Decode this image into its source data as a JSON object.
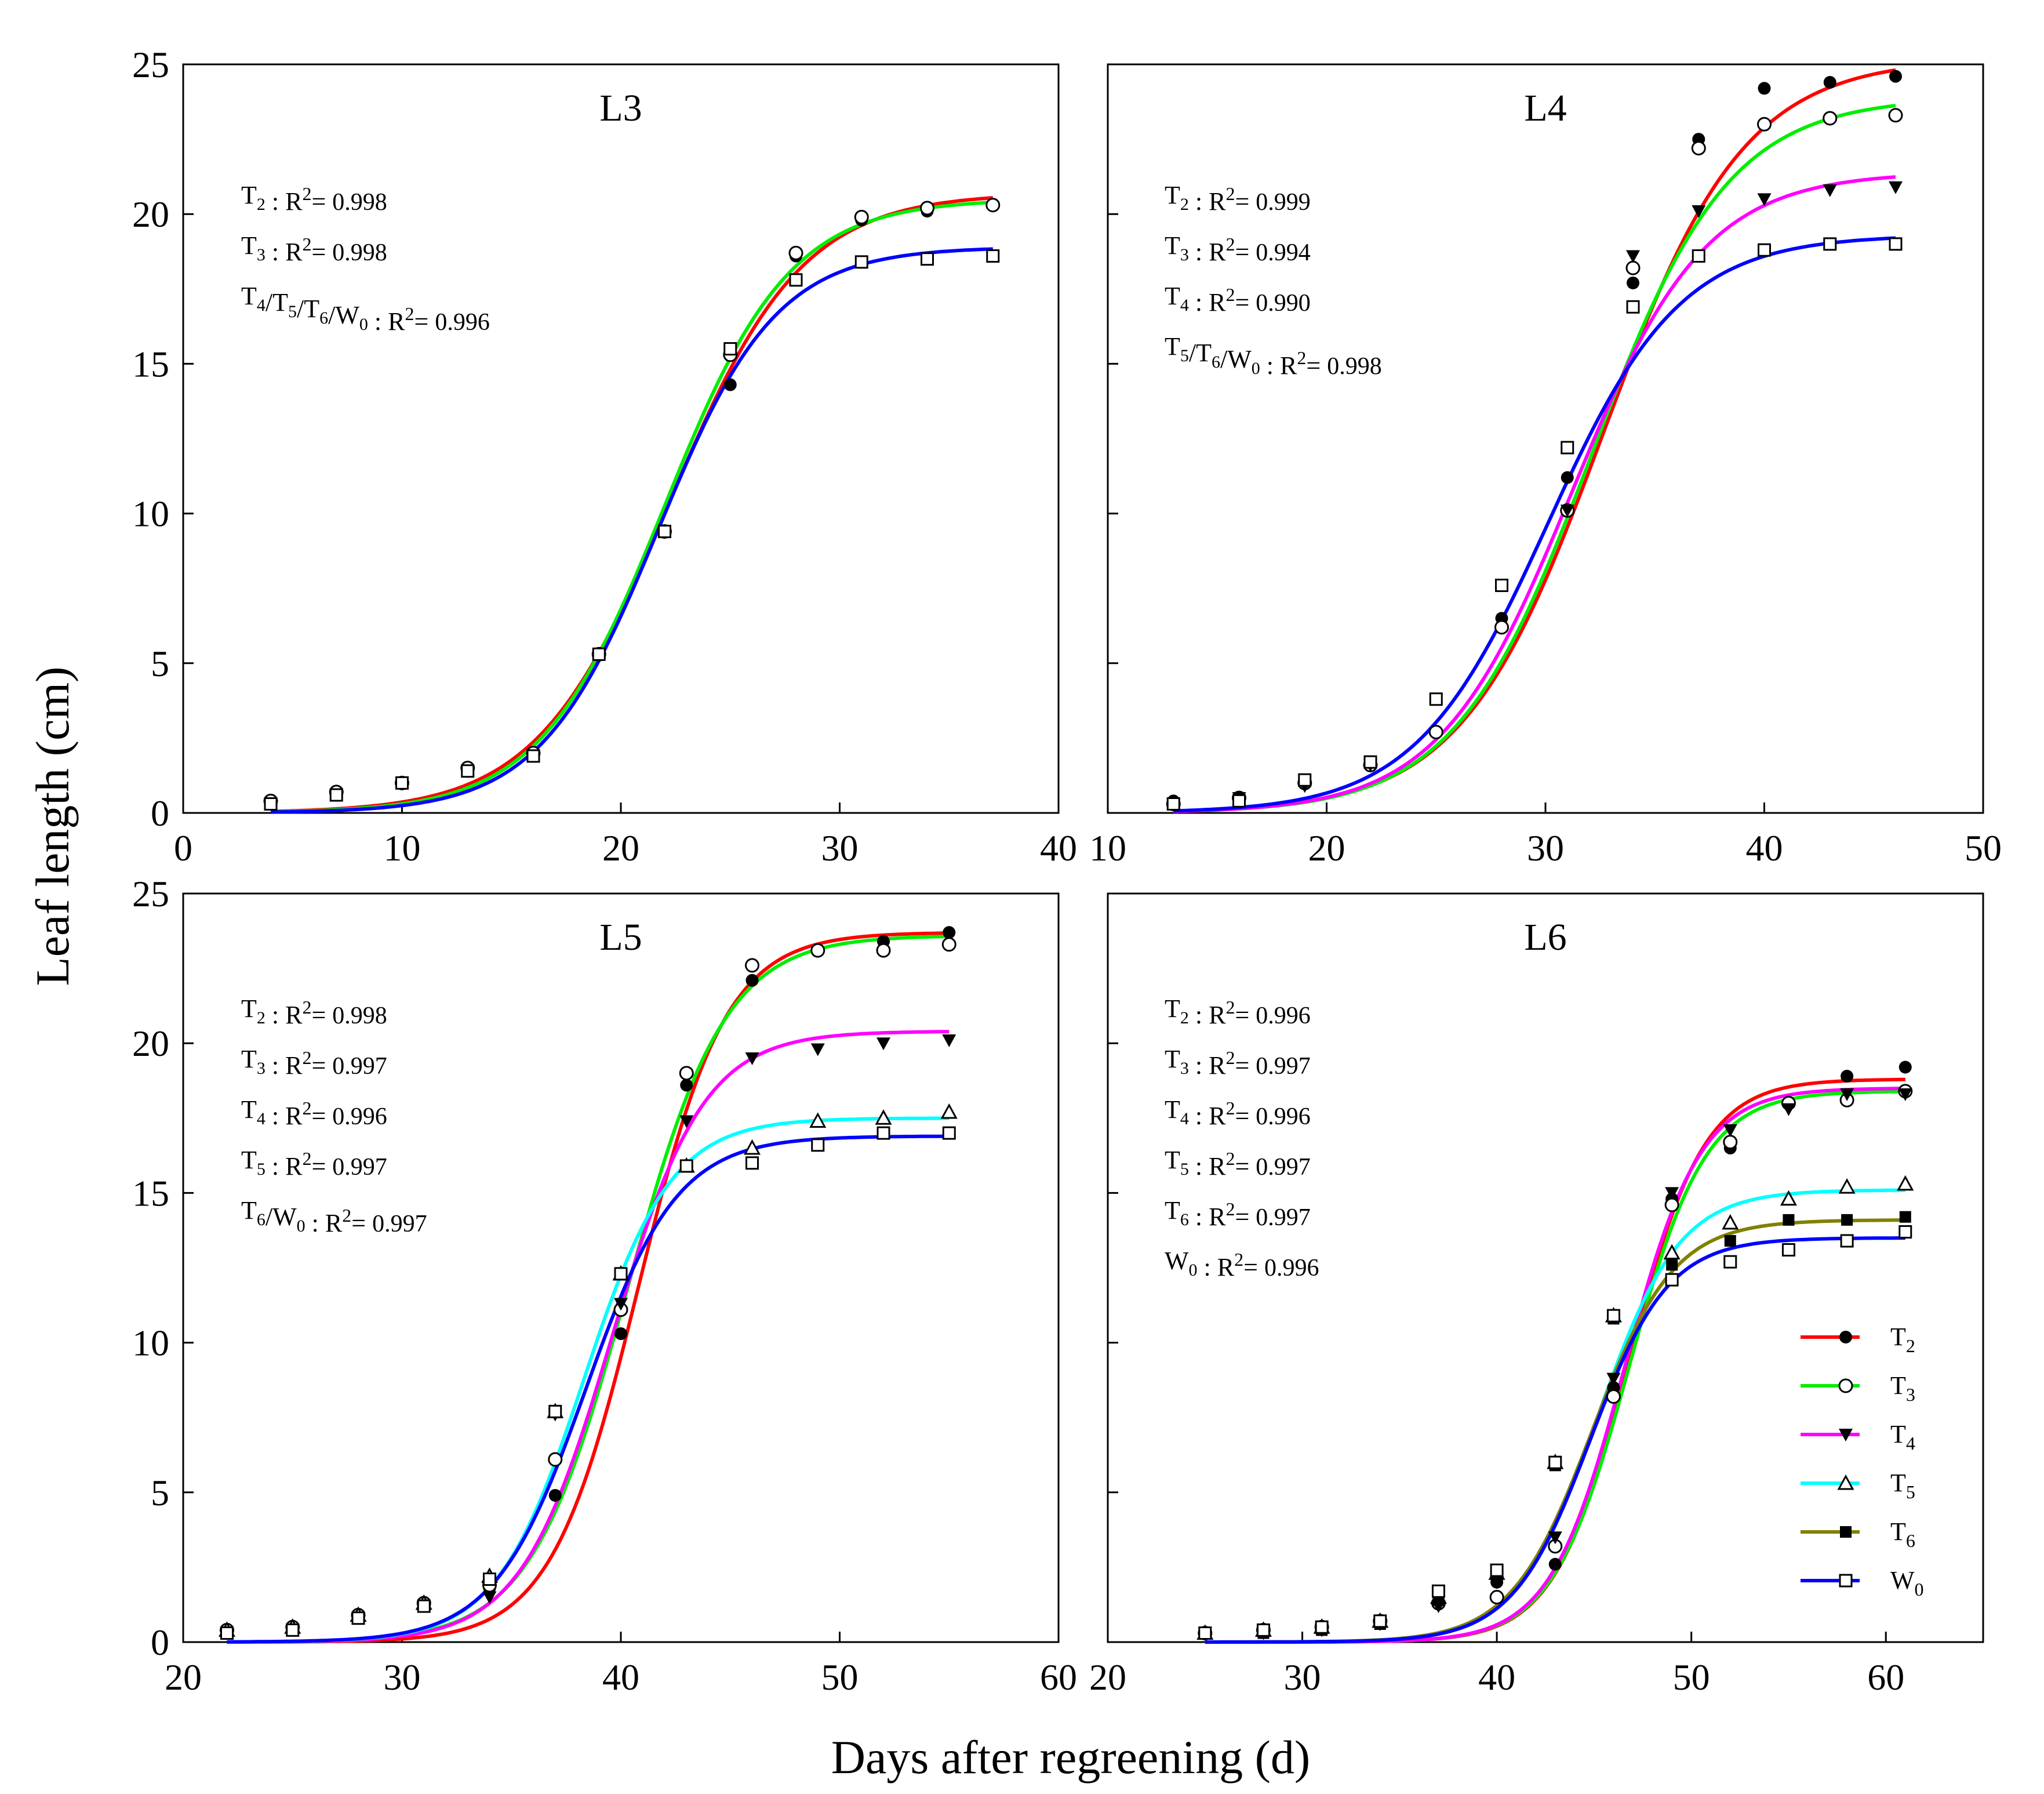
{
  "figure": {
    "ylabel": "Leaf length (cm)",
    "xlabel": "Days after regreening (d)",
    "colors": {
      "T2": "#ff0000",
      "T3": "#00ee00",
      "T4": "#ff00ff",
      "T5": "#00ffff",
      "T6": "#808000",
      "W0": "#0000ff"
    },
    "markers": {
      "T2": "filled-circle",
      "T3": "open-circle",
      "T4": "filled-triangle-down",
      "T5": "open-triangle-up",
      "T6": "filled-square",
      "W0": "open-square"
    },
    "legend": {
      "placement": "L6 panel, lower-right",
      "entries": [
        {
          "key": "T2",
          "main": "T",
          "sub": "2"
        },
        {
          "key": "T3",
          "main": "T",
          "sub": "3"
        },
        {
          "key": "T4",
          "main": "T",
          "sub": "4"
        },
        {
          "key": "T5",
          "main": "T",
          "sub": "5"
        },
        {
          "key": "T6",
          "main": "T",
          "sub": "6"
        },
        {
          "key": "W0",
          "main": "W",
          "sub": "0"
        }
      ]
    }
  },
  "chart_data": [
    {
      "type": "scatter",
      "title": "L3",
      "xlim": [
        0,
        40
      ],
      "ylim": [
        0,
        25
      ],
      "xticks": [
        0,
        10,
        20,
        30,
        40
      ],
      "xtick_labels": [
        "0",
        "10",
        "20",
        "30",
        "40"
      ],
      "yticks": [
        0,
        5,
        10,
        15,
        20,
        25
      ],
      "ytick_labels": [
        "0",
        "5",
        "10",
        "15",
        "20",
        "25"
      ],
      "show_ytick_labels": true,
      "annotations": [
        {
          "parts": [
            [
              "T",
              "2"
            ]
          ],
          "r2": "0.998"
        },
        {
          "parts": [
            [
              "T",
              "3"
            ]
          ],
          "r2": "0.998"
        },
        {
          "parts": [
            [
              "T",
              "4"
            ],
            [
              "T",
              "5"
            ],
            [
              "T",
              "6"
            ],
            [
              "W",
              "0"
            ]
          ],
          "r2": "0.996"
        }
      ],
      "curves": [
        {
          "name": "T2",
          "A": 20.7,
          "k": 0.33,
          "x0": 22.2
        },
        {
          "name": "T3",
          "A": 20.5,
          "k": 0.35,
          "x0": 22.0
        },
        {
          "name": "W0",
          "A": 18.9,
          "k": 0.37,
          "x0": 21.7
        }
      ],
      "curve_x_range": [
        4,
        37
      ],
      "series": [
        {
          "name": "T2",
          "x": [
            4,
            7,
            10,
            13,
            16,
            19,
            22,
            25,
            28,
            31,
            34,
            37
          ],
          "y": [
            0.4,
            0.7,
            1.0,
            1.5,
            2.0,
            5.3,
            9.4,
            14.3,
            18.6,
            19.8,
            20.1,
            20.3
          ]
        },
        {
          "name": "T3",
          "x": [
            4,
            7,
            10,
            13,
            16,
            19,
            22,
            25,
            28,
            31,
            34,
            37
          ],
          "y": [
            0.4,
            0.7,
            1.0,
            1.5,
            2.0,
            5.3,
            9.4,
            15.3,
            18.7,
            19.9,
            20.2,
            20.3
          ]
        },
        {
          "name": "W0",
          "x": [
            4,
            7,
            10,
            13,
            16,
            19,
            22,
            25,
            28,
            31,
            34,
            37
          ],
          "y": [
            0.3,
            0.6,
            1.0,
            1.4,
            1.9,
            5.3,
            9.4,
            15.5,
            17.8,
            18.4,
            18.5,
            18.6
          ]
        }
      ]
    },
    {
      "type": "scatter",
      "title": "L4",
      "xlim": [
        10,
        50
      ],
      "ylim": [
        0,
        25
      ],
      "xticks": [
        10,
        20,
        30,
        40,
        50
      ],
      "xtick_labels": [
        "10",
        "20",
        "30",
        "40",
        "50"
      ],
      "yticks": [
        0,
        5,
        10,
        15,
        20,
        25
      ],
      "ytick_labels": [
        "0",
        "5",
        "10",
        "15",
        "20",
        "25"
      ],
      "show_ytick_labels": false,
      "annotations": [
        {
          "parts": [
            [
              "T",
              "2"
            ]
          ],
          "r2": "0.999"
        },
        {
          "parts": [
            [
              "T",
              "3"
            ]
          ],
          "r2": "0.994"
        },
        {
          "parts": [
            [
              "T",
              "4"
            ]
          ],
          "r2": "0.990"
        },
        {
          "parts": [
            [
              "T",
              "5"
            ],
            [
              "T",
              "6"
            ],
            [
              "W",
              "0"
            ]
          ],
          "r2": "0.998"
        }
      ],
      "curves": [
        {
          "name": "T2",
          "A": 25.2,
          "k": 0.31,
          "x0": 32.6
        },
        {
          "name": "T3",
          "A": 23.9,
          "k": 0.32,
          "x0": 32.1
        },
        {
          "name": "T4",
          "A": 21.4,
          "k": 0.33,
          "x0": 31.2
        },
        {
          "name": "W0",
          "A": 19.3,
          "k": 0.33,
          "x0": 30.1
        }
      ],
      "curve_x_range": [
        13,
        46
      ],
      "series": [
        {
          "name": "T2",
          "x": [
            13,
            16,
            19,
            22,
            25,
            28,
            31,
            34,
            37,
            40,
            43,
            46
          ],
          "y": [
            0.4,
            0.5,
            1.0,
            1.6,
            2.7,
            6.5,
            11.2,
            17.7,
            22.5,
            24.2,
            24.4,
            24.6
          ]
        },
        {
          "name": "T3",
          "x": [
            13,
            16,
            19,
            22,
            25,
            28,
            31,
            34,
            37,
            40,
            43,
            46
          ],
          "y": [
            0.3,
            0.5,
            1.0,
            1.6,
            2.7,
            6.2,
            10.1,
            18.2,
            22.2,
            23.0,
            23.2,
            23.3
          ]
        },
        {
          "name": "T4",
          "x": [
            13,
            16,
            19,
            22,
            25,
            28,
            31,
            34,
            37,
            40,
            43,
            46
          ],
          "y": [
            0.3,
            0.5,
            0.9,
            1.6,
            3.8,
            7.6,
            10.1,
            18.6,
            20.1,
            20.5,
            20.8,
            20.9
          ]
        },
        {
          "name": "W0",
          "x": [
            13,
            16,
            19,
            22,
            25,
            28,
            31,
            34,
            37,
            40,
            43,
            46
          ],
          "y": [
            0.3,
            0.4,
            1.1,
            1.7,
            3.8,
            7.6,
            12.2,
            16.9,
            18.6,
            18.8,
            19.0,
            19.0
          ]
        }
      ]
    },
    {
      "type": "scatter",
      "title": "L5",
      "xlim": [
        20,
        60
      ],
      "ylim": [
        0,
        25
      ],
      "xticks": [
        20,
        30,
        40,
        50,
        60
      ],
      "xtick_labels": [
        "20",
        "30",
        "40",
        "50",
        "60"
      ],
      "yticks": [
        0,
        5,
        10,
        15,
        20,
        25
      ],
      "ytick_labels": [
        "0",
        "5",
        "10",
        "15",
        "20",
        "25"
      ],
      "show_ytick_labels": true,
      "annotations": [
        {
          "parts": [
            [
              "T",
              "2"
            ]
          ],
          "r2": "0.998"
        },
        {
          "parts": [
            [
              "T",
              "3"
            ]
          ],
          "r2": "0.997"
        },
        {
          "parts": [
            [
              "T",
              "4"
            ]
          ],
          "r2": "0.996"
        },
        {
          "parts": [
            [
              "T",
              "5"
            ]
          ],
          "r2": "0.997"
        },
        {
          "parts": [
            [
              "T",
              "6"
            ],
            [
              "W",
              "0"
            ]
          ],
          "r2": "0.997"
        }
      ],
      "curves": [
        {
          "name": "T2",
          "A": 23.7,
          "k": 0.5,
          "x0": 40.8
        },
        {
          "name": "T3",
          "A": 23.6,
          "k": 0.45,
          "x0": 40.3
        },
        {
          "name": "T4",
          "A": 20.4,
          "k": 0.48,
          "x0": 39.6
        },
        {
          "name": "T5",
          "A": 17.5,
          "k": 0.5,
          "x0": 38.3
        },
        {
          "name": "W0",
          "A": 16.9,
          "k": 0.48,
          "x0": 38.4
        }
      ],
      "curve_x_range": [
        22,
        55
      ],
      "series": [
        {
          "name": "T2",
          "x": [
            22,
            25,
            28,
            31,
            34,
            37,
            40,
            43,
            46,
            49,
            52,
            55
          ],
          "y": [
            0.4,
            0.5,
            0.8,
            1.2,
            1.8,
            4.9,
            10.3,
            18.6,
            22.1,
            23.1,
            23.4,
            23.7
          ]
        },
        {
          "name": "T3",
          "x": [
            22,
            25,
            28,
            31,
            34,
            37,
            40,
            43,
            46,
            49,
            52,
            55
          ],
          "y": [
            0.4,
            0.5,
            0.9,
            1.3,
            1.9,
            6.1,
            11.1,
            19.0,
            22.6,
            23.1,
            23.1,
            23.3
          ]
        },
        {
          "name": "T4",
          "x": [
            22,
            25,
            28,
            31,
            34,
            37,
            40,
            43,
            46,
            49,
            52,
            55
          ],
          "y": [
            0.3,
            0.4,
            0.8,
            1.2,
            1.5,
            7.6,
            11.3,
            17.4,
            19.5,
            19.8,
            20.0,
            20.1
          ]
        },
        {
          "name": "T5",
          "x": [
            22,
            25,
            28,
            31,
            34,
            37,
            40,
            43,
            46,
            49,
            52,
            55
          ],
          "y": [
            0.4,
            0.5,
            0.9,
            1.3,
            2.2,
            7.7,
            12.3,
            15.9,
            16.5,
            17.4,
            17.5,
            17.7
          ]
        },
        {
          "name": "W0",
          "x": [
            22,
            25,
            28,
            31,
            34,
            37,
            40,
            43,
            46,
            49,
            52,
            55
          ],
          "y": [
            0.3,
            0.4,
            0.8,
            1.2,
            2.1,
            7.7,
            12.3,
            15.9,
            16.0,
            16.6,
            17.0,
            17.0
          ]
        }
      ]
    },
    {
      "type": "scatter",
      "title": "L6",
      "xlim": [
        20,
        65
      ],
      "ylim": [
        0,
        25
      ],
      "xticks": [
        20,
        30,
        40,
        50,
        60
      ],
      "xtick_labels": [
        "20",
        "30",
        "40",
        "50",
        "60"
      ],
      "yticks": [
        0,
        5,
        10,
        15,
        20,
        25
      ],
      "ytick_labels": [
        "0",
        "5",
        "10",
        "15",
        "20",
        "25"
      ],
      "show_ytick_labels": false,
      "annotations": [
        {
          "parts": [
            [
              "T",
              "2"
            ]
          ],
          "r2": "0.996"
        },
        {
          "parts": [
            [
              "T",
              "3"
            ]
          ],
          "r2": "0.997"
        },
        {
          "parts": [
            [
              "T",
              "4"
            ]
          ],
          "r2": "0.996"
        },
        {
          "parts": [
            [
              "T",
              "5"
            ]
          ],
          "r2": "0.997"
        },
        {
          "parts": [
            [
              "T",
              "6"
            ]
          ],
          "r2": "0.997"
        },
        {
          "parts": [
            [
              "W",
              "0"
            ]
          ],
          "r2": "0.996"
        }
      ],
      "curves": [
        {
          "name": "T2",
          "A": 18.8,
          "k": 0.52,
          "x0": 46.8
        },
        {
          "name": "T3",
          "A": 18.4,
          "k": 0.51,
          "x0": 46.8
        },
        {
          "name": "T4",
          "A": 18.5,
          "k": 0.52,
          "x0": 46.6
        },
        {
          "name": "T5",
          "A": 15.1,
          "k": 0.48,
          "x0": 45.2
        },
        {
          "name": "T6",
          "A": 14.1,
          "k": 0.48,
          "x0": 44.9
        },
        {
          "name": "W0",
          "A": 13.5,
          "k": 0.5,
          "x0": 44.8
        }
      ],
      "curve_x_range": [
        25,
        61
      ],
      "series": [
        {
          "name": "T2",
          "x": [
            25,
            28,
            31,
            34,
            37,
            40,
            43,
            46,
            49,
            52,
            55,
            58,
            61
          ],
          "y": [
            0.3,
            0.4,
            0.5,
            0.7,
            1.3,
            2.0,
            2.6,
            8.5,
            14.8,
            16.5,
            18.0,
            18.9,
            19.2
          ]
        },
        {
          "name": "T3",
          "x": [
            25,
            28,
            31,
            34,
            37,
            40,
            43,
            46,
            49,
            52,
            55,
            58,
            61
          ],
          "y": [
            0.3,
            0.4,
            0.5,
            0.7,
            1.3,
            1.5,
            3.2,
            8.2,
            14.6,
            16.7,
            18.0,
            18.1,
            18.4
          ]
        },
        {
          "name": "T4",
          "x": [
            25,
            28,
            31,
            34,
            37,
            40,
            43,
            46,
            49,
            52,
            55,
            58,
            61
          ],
          "y": [
            0.3,
            0.3,
            0.4,
            0.6,
            1.2,
            2.0,
            3.5,
            8.8,
            15.0,
            17.1,
            17.8,
            18.3,
            18.3
          ]
        },
        {
          "name": "T5",
          "x": [
            25,
            28,
            31,
            34,
            37,
            40,
            43,
            46,
            49,
            52,
            55,
            58,
            61
          ],
          "y": [
            0.3,
            0.4,
            0.5,
            0.7,
            1.5,
            2.3,
            6.0,
            10.9,
            13.0,
            14.0,
            14.8,
            15.2,
            15.3
          ]
        },
        {
          "name": "T6",
          "x": [
            25,
            28,
            31,
            34,
            37,
            40,
            43,
            46,
            49,
            52,
            55,
            58,
            61
          ],
          "y": [
            0.3,
            0.3,
            0.4,
            0.6,
            1.4,
            2.3,
            5.9,
            10.8,
            12.6,
            13.4,
            14.1,
            14.1,
            14.2
          ]
        },
        {
          "name": "W0",
          "x": [
            25,
            28,
            31,
            34,
            37,
            40,
            43,
            46,
            49,
            52,
            55,
            58,
            61
          ],
          "y": [
            0.3,
            0.4,
            0.5,
            0.7,
            1.7,
            2.4,
            6.0,
            10.9,
            12.1,
            12.7,
            13.1,
            13.4,
            13.7
          ]
        }
      ]
    }
  ]
}
